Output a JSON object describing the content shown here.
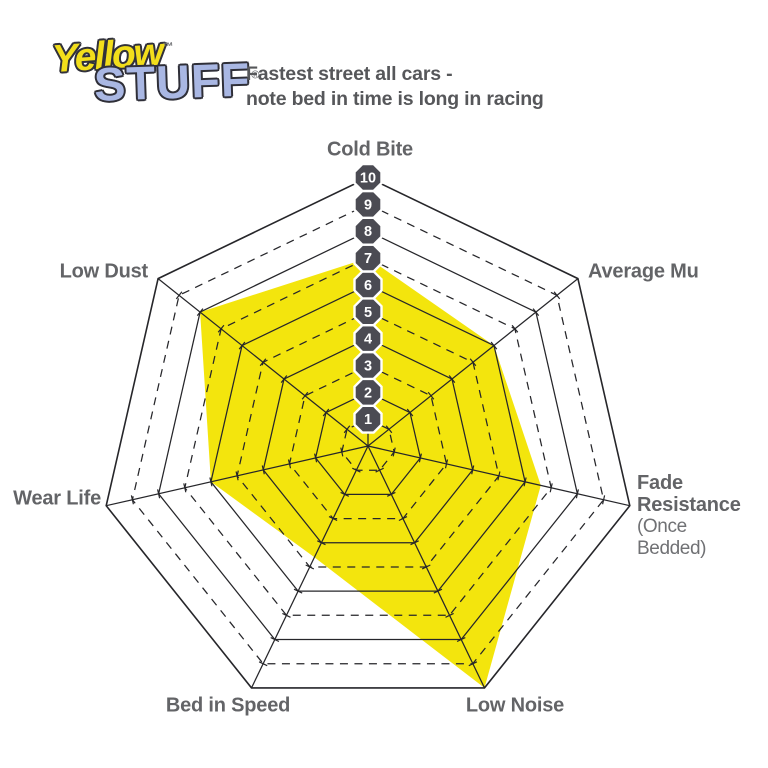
{
  "logo": {
    "word1": "Yellow",
    "tm": "™",
    "word2": "STUFF",
    "reg": "®",
    "word1_color": "#f2de1b",
    "word2_color": "#a9b7e3"
  },
  "header": {
    "line1": "Fastest street all cars -",
    "line2": "note bed in time is long in racing"
  },
  "chart_data": {
    "type": "radar",
    "title": "Fastest street all cars - note bed in time is long in racing",
    "axes": [
      {
        "label": "Cold Bite",
        "value": 7
      },
      {
        "label": "Average Mu",
        "value": 6
      },
      {
        "label": "Fade Resistance",
        "sublabel": "(Once Bedded)",
        "value": 6.6
      },
      {
        "label": "Low Noise",
        "value": 10
      },
      {
        "label": "Bed in Speed",
        "value": 4.6
      },
      {
        "label": "Wear Life",
        "value": 6
      },
      {
        "label": "Low Dust",
        "value": 8
      }
    ],
    "scale": {
      "min": 0,
      "max": 10,
      "ticks": [
        1,
        2,
        3,
        4,
        5,
        6,
        7,
        8,
        9,
        10
      ]
    },
    "grid": {
      "rings": 10,
      "even_ring_style": "solid",
      "odd_ring_style": "dashed",
      "spokes": 7
    },
    "legend": "none",
    "fill_color": "#f3e50d",
    "badge_color": "#4b4b53",
    "grid_line_color": "#26262a",
    "label_color": "#636467"
  }
}
